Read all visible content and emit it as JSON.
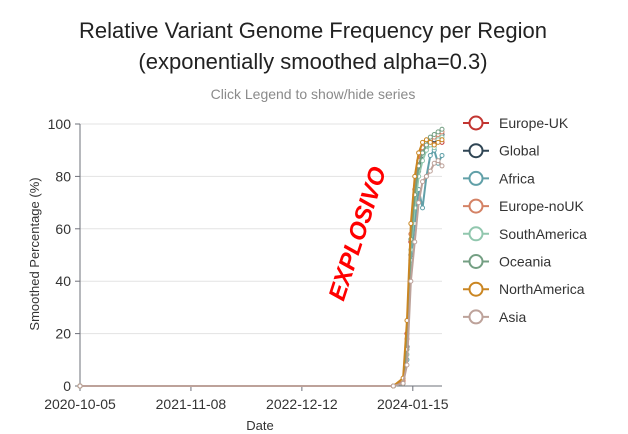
{
  "chart_data": {
    "type": "line",
    "title": "Relative Variant Genome Frequency per Region",
    "subtitle": "(exponentially smoothed alpha=0.3)",
    "hint": "Click Legend to show/hide series",
    "xlabel": "Date",
    "ylabel": "Smoothed Percentage (%)",
    "annotation": "EXPLOSIVO",
    "annotation_color": "#ff0000",
    "x_ticks": [
      "2020-10-05",
      "2021-11-08",
      "2022-12-12",
      "2024-01-15"
    ],
    "xlim": [
      "2020-10-05",
      "2024-04-29"
    ],
    "y_ticks": [
      0,
      20,
      40,
      60,
      80,
      100
    ],
    "ylim": [
      0,
      100
    ],
    "grid": "horizontal",
    "legend_position": "right",
    "series": [
      {
        "name": "Europe-UK",
        "color": "#c23531",
        "points": [
          [
            "2020-10-05",
            0
          ],
          [
            "2023-11-06",
            0
          ],
          [
            "2023-12-11",
            2
          ],
          [
            "2023-12-25",
            20
          ],
          [
            "2024-01-08",
            55
          ],
          [
            "2024-01-22",
            72
          ],
          [
            "2024-02-05",
            85
          ],
          [
            "2024-02-19",
            90
          ],
          [
            "2024-03-04",
            93
          ],
          [
            "2024-03-18",
            94
          ],
          [
            "2024-04-01",
            92
          ],
          [
            "2024-04-15",
            95
          ],
          [
            "2024-04-29",
            93
          ]
        ]
      },
      {
        "name": "Global",
        "color": "#2f4554",
        "points": [
          [
            "2020-10-05",
            0
          ],
          [
            "2023-11-06",
            0
          ],
          [
            "2023-12-11",
            1
          ],
          [
            "2023-12-25",
            15
          ],
          [
            "2024-01-08",
            50
          ],
          [
            "2024-01-22",
            70
          ],
          [
            "2024-02-05",
            82
          ],
          [
            "2024-02-19",
            88
          ],
          [
            "2024-03-04",
            91
          ],
          [
            "2024-03-18",
            93
          ],
          [
            "2024-04-01",
            94
          ],
          [
            "2024-04-15",
            95
          ],
          [
            "2024-04-29",
            96
          ]
        ]
      },
      {
        "name": "Africa",
        "color": "#61a0a8",
        "points": [
          [
            "2020-10-05",
            0
          ],
          [
            "2023-11-06",
            0
          ],
          [
            "2023-12-11",
            1
          ],
          [
            "2023-12-25",
            10
          ],
          [
            "2024-01-08",
            48
          ],
          [
            "2024-01-22",
            62
          ],
          [
            "2024-02-05",
            75
          ],
          [
            "2024-02-19",
            68
          ],
          [
            "2024-03-04",
            80
          ],
          [
            "2024-03-18",
            88
          ],
          [
            "2024-04-01",
            90
          ],
          [
            "2024-04-15",
            85
          ],
          [
            "2024-04-29",
            88
          ]
        ]
      },
      {
        "name": "Europe-noUK",
        "color": "#d48265",
        "points": [
          [
            "2020-10-05",
            0
          ],
          [
            "2023-11-06",
            0
          ],
          [
            "2023-12-11",
            2
          ],
          [
            "2023-12-25",
            18
          ],
          [
            "2024-01-08",
            58
          ],
          [
            "2024-01-22",
            75
          ],
          [
            "2024-02-05",
            86
          ],
          [
            "2024-02-19",
            91
          ],
          [
            "2024-03-04",
            93
          ],
          [
            "2024-03-18",
            94
          ],
          [
            "2024-04-01",
            95
          ],
          [
            "2024-04-15",
            96
          ],
          [
            "2024-04-29",
            97
          ]
        ]
      },
      {
        "name": "SouthAmerica",
        "color": "#91c7ae",
        "points": [
          [
            "2020-10-05",
            0
          ],
          [
            "2023-11-06",
            0
          ],
          [
            "2023-12-11",
            1
          ],
          [
            "2023-12-25",
            12
          ],
          [
            "2024-01-08",
            52
          ],
          [
            "2024-01-22",
            68
          ],
          [
            "2024-02-05",
            80
          ],
          [
            "2024-02-19",
            86
          ],
          [
            "2024-03-04",
            90
          ],
          [
            "2024-03-18",
            92
          ],
          [
            "2024-04-01",
            91
          ],
          [
            "2024-04-15",
            94
          ],
          [
            "2024-04-29",
            95
          ]
        ]
      },
      {
        "name": "Oceania",
        "color": "#749f83",
        "points": [
          [
            "2020-10-05",
            0
          ],
          [
            "2023-11-06",
            0
          ],
          [
            "2023-12-11",
            1
          ],
          [
            "2023-12-25",
            14
          ],
          [
            "2024-01-08",
            56
          ],
          [
            "2024-01-22",
            73
          ],
          [
            "2024-02-05",
            84
          ],
          [
            "2024-02-19",
            89
          ],
          [
            "2024-03-04",
            92
          ],
          [
            "2024-03-18",
            95
          ],
          [
            "2024-04-01",
            96
          ],
          [
            "2024-04-15",
            97
          ],
          [
            "2024-04-29",
            98
          ]
        ]
      },
      {
        "name": "NorthAmerica",
        "color": "#ca8622",
        "points": [
          [
            "2020-10-05",
            0
          ],
          [
            "2023-11-06",
            0
          ],
          [
            "2023-12-11",
            3
          ],
          [
            "2023-12-25",
            25
          ],
          [
            "2024-01-08",
            62
          ],
          [
            "2024-01-22",
            80
          ],
          [
            "2024-02-05",
            89
          ],
          [
            "2024-02-19",
            93
          ],
          [
            "2024-03-04",
            94
          ],
          [
            "2024-03-18",
            93
          ],
          [
            "2024-04-01",
            92
          ],
          [
            "2024-04-15",
            93
          ],
          [
            "2024-04-29",
            94
          ]
        ]
      },
      {
        "name": "Asia",
        "color": "#bda29a",
        "points": [
          [
            "2020-10-05",
            0
          ],
          [
            "2023-11-06",
            0
          ],
          [
            "2023-12-11",
            1
          ],
          [
            "2023-12-25",
            8
          ],
          [
            "2024-01-08",
            40
          ],
          [
            "2024-01-22",
            55
          ],
          [
            "2024-02-05",
            70
          ],
          [
            "2024-02-19",
            78
          ],
          [
            "2024-03-04",
            80
          ],
          [
            "2024-03-18",
            82
          ],
          [
            "2024-04-01",
            85
          ],
          [
            "2024-04-15",
            86
          ],
          [
            "2024-04-29",
            84
          ]
        ]
      }
    ]
  }
}
